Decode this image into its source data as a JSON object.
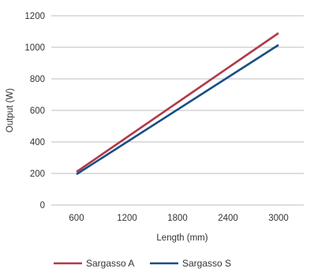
{
  "chart_data": {
    "type": "line",
    "title": "",
    "xlabel": "Length (mm)",
    "ylabel": "Output (W)",
    "xlim": [
      300,
      3300
    ],
    "ylim": [
      0,
      1200
    ],
    "x_ticks": [
      600,
      1200,
      1800,
      2400,
      3000
    ],
    "y_ticks": [
      0,
      200,
      400,
      600,
      800,
      1000,
      1200
    ],
    "x_tick_labels": [
      "600",
      "1200",
      "1800",
      "2400",
      "3000"
    ],
    "y_tick_labels": [
      "0",
      "200",
      "400",
      "600",
      "800",
      "1000",
      "1200"
    ],
    "grid": "horizontal",
    "legend_position": "bottom",
    "series": [
      {
        "name": "Sargasso A",
        "color": "#b03a48",
        "x": [
          600,
          3000
        ],
        "y": [
          210,
          1090
        ]
      },
      {
        "name": "Sargasso S",
        "color": "#174f86",
        "x": [
          600,
          3000
        ],
        "y": [
          195,
          1015
        ]
      }
    ]
  }
}
